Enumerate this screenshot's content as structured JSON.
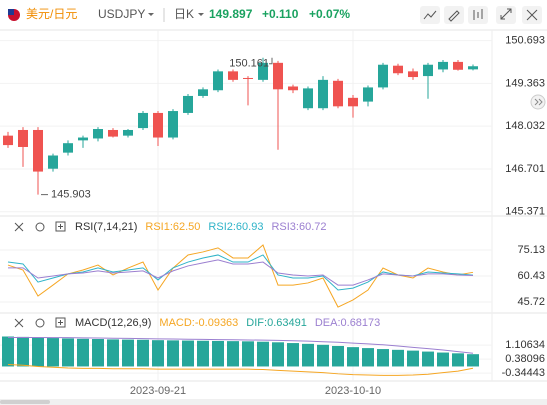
{
  "header": {
    "name": "美元/日元",
    "symbol": "USDJPY",
    "period": "日K",
    "price": "149.897",
    "change": "+0.110",
    "change_pct": "+0.07%"
  },
  "chart_data": [
    {
      "type": "candlestick",
      "categories": [
        null,
        null,
        null,
        null,
        null,
        null,
        null,
        null,
        null,
        null,
        "2023-09-21",
        null,
        null,
        null,
        null,
        null,
        null,
        null,
        null,
        null,
        null,
        null,
        null,
        "2023-10-10",
        null,
        null,
        null,
        null,
        null,
        null,
        null,
        null
      ],
      "open": [
        147.738,
        147.914,
        147.914,
        146.709,
        147.209,
        147.591,
        147.65,
        147.914,
        147.738,
        147.973,
        148.444,
        147.679,
        148.444,
        148.973,
        149.15,
        149.738,
        149.532,
        149.473,
        150.003,
        149.267,
        148.591,
        148.591,
        149.444,
        148.914,
        148.797,
        149.238,
        149.914,
        149.738,
        149.591,
        149.797,
        150.032,
        149.8
      ],
      "high": [
        147.856,
        148.003,
        148.003,
        147.179,
        147.591,
        147.738,
        148.003,
        147.973,
        147.944,
        148.503,
        148.503,
        148.561,
        149.032,
        149.238,
        149.797,
        149.797,
        149.591,
        150.161,
        150.062,
        149.326,
        149.267,
        149.591,
        149.503,
        149.003,
        149.297,
        150.003,
        149.973,
        149.826,
        150.003,
        150.091,
        150.091,
        149.95
      ],
      "low": [
        147.356,
        146.767,
        145.903,
        146.62,
        147.12,
        147.356,
        147.561,
        147.679,
        147.679,
        147.914,
        147.414,
        147.62,
        148.385,
        148.914,
        149.091,
        149.414,
        148.679,
        149.414,
        147.3,
        149.061,
        148.532,
        148.532,
        148.591,
        148.297,
        148.65,
        149.179,
        149.62,
        149.473,
        148.885,
        149.709,
        149.76,
        149.77
      ],
      "close": [
        147.444,
        147.385,
        146.62,
        147.12,
        147.503,
        147.679,
        147.944,
        147.708,
        147.914,
        148.444,
        147.679,
        148.503,
        148.973,
        149.179,
        149.738,
        149.473,
        149.503,
        150.003,
        149.179,
        149.15,
        149.208,
        149.473,
        148.65,
        148.65,
        149.238,
        149.944,
        149.679,
        149.561,
        149.944,
        150.032,
        149.787,
        149.897
      ],
      "up_color": "#26a69a",
      "down_color": "#ef5350",
      "ylim": [
        145.3,
        150.9
      ],
      "yticks": [
        145.371,
        146.701,
        148.032,
        149.363,
        150.693
      ],
      "grid": true
    },
    {
      "type": "line",
      "title": "RSI(7,14,21)",
      "series": [
        {
          "name": "RSI1:62.50",
          "color": "#f5a623",
          "values": [
            66.6,
            63.8,
            49.1,
            55.3,
            61.6,
            63.8,
            66.6,
            61.0,
            64.9,
            68.3,
            52.5,
            64.9,
            72.3,
            74.0,
            76.3,
            70.6,
            70.6,
            77.9,
            55.3,
            55.3,
            56.5,
            59.3,
            42.9,
            46.9,
            52.5,
            64.9,
            61.0,
            59.3,
            64.9,
            62.7,
            61.0,
            62.5
          ]
        },
        {
          "name": "RSI2:60.93",
          "color": "#2fb3c8",
          "values": [
            68.3,
            67.2,
            57.0,
            59.3,
            61.6,
            62.7,
            65.0,
            62.7,
            63.8,
            65.0,
            58.2,
            65.0,
            68.3,
            70.6,
            72.3,
            68.3,
            68.3,
            72.3,
            61.0,
            59.3,
            59.3,
            60.4,
            52.5,
            53.6,
            57.0,
            62.7,
            61.0,
            60.4,
            62.7,
            62.1,
            61.6,
            60.93
          ]
        },
        {
          "name": "RSI3:60.72",
          "color": "#9b7fd0",
          "values": [
            65.0,
            65.0,
            59.3,
            60.4,
            61.6,
            62.1,
            63.3,
            62.1,
            62.7,
            63.3,
            59.3,
            63.3,
            66.1,
            67.8,
            69.5,
            67.2,
            67.2,
            68.3,
            62.1,
            61.0,
            60.4,
            61.0,
            55.3,
            55.3,
            58.2,
            61.6,
            61.0,
            60.4,
            61.6,
            61.6,
            61.0,
            60.72
          ]
        }
      ],
      "ylim": [
        40.1,
        90.9
      ],
      "yticks": [
        45.72,
        60.43,
        75.13
      ],
      "grid": true
    },
    {
      "type": "macd",
      "title": "MACD(12,26,9)",
      "series": [
        {
          "name": "MACD:-0.09363",
          "color": "#f5a623",
          "style": "line",
          "values": [
            0.1,
            0.06,
            0.0,
            -0.04,
            -0.08,
            -0.1,
            -0.1,
            -0.12,
            -0.12,
            -0.12,
            -0.14,
            -0.14,
            -0.14,
            -0.14,
            -0.14,
            -0.14,
            -0.14,
            -0.16,
            -0.2,
            -0.24,
            -0.28,
            -0.32,
            -0.38,
            -0.42,
            -0.44,
            -0.46,
            -0.46,
            -0.44,
            -0.4,
            -0.32,
            -0.24,
            -0.09363
          ]
        },
        {
          "name": "DIF:0.63491",
          "color": "#26a69a",
          "style": "bar",
          "values": [
            1.55,
            1.53,
            1.5,
            1.47,
            1.45,
            1.43,
            1.42,
            1.4,
            1.39,
            1.38,
            1.36,
            1.35,
            1.34,
            1.33,
            1.32,
            1.31,
            1.3,
            1.28,
            1.25,
            1.21,
            1.17,
            1.12,
            1.06,
            1.0,
            0.95,
            0.9,
            0.86,
            0.82,
            0.77,
            0.72,
            0.68,
            0.63491
          ]
        },
        {
          "name": "DEA:0.68173",
          "color": "#9b7fd0",
          "style": "line",
          "values": [
            1.5,
            1.5,
            1.5,
            1.49,
            1.49,
            1.48,
            1.47,
            1.46,
            1.45,
            1.44,
            1.43,
            1.42,
            1.41,
            1.4,
            1.39,
            1.38,
            1.37,
            1.36,
            1.35,
            1.33,
            1.31,
            1.28,
            1.25,
            1.21,
            1.17,
            1.12,
            1.06,
            0.99,
            0.92,
            0.85,
            0.77,
            0.68173
          ]
        }
      ],
      "ylim": [
        -0.7,
        1.886
      ],
      "yticks": [
        -0.34443,
        0.38096,
        1.10634
      ],
      "grid": true
    }
  ]
}
